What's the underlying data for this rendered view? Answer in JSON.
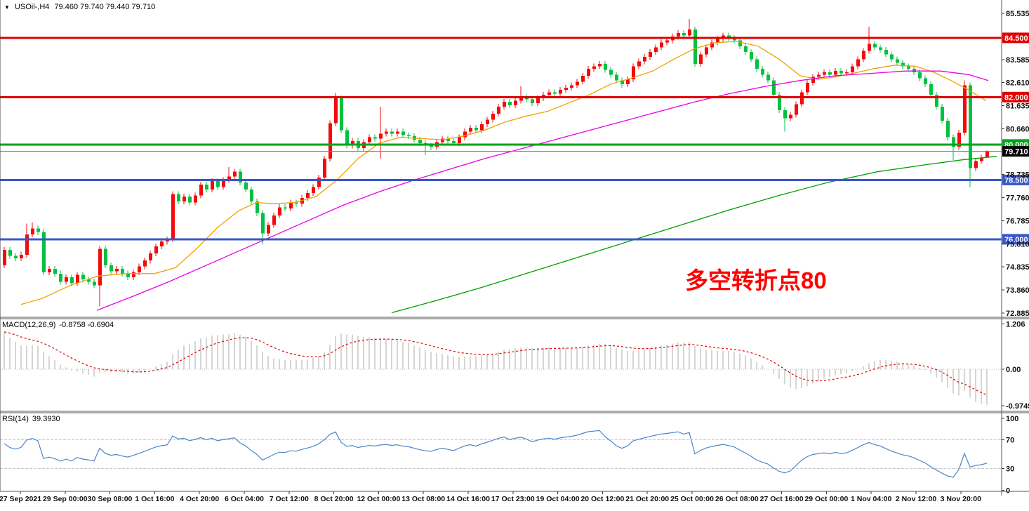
{
  "header": {
    "dropdown_icon": "▼",
    "symbol_text": "USOil-,H4",
    "ohlc_text": "79.460 79.740 79.440 79.710"
  },
  "chart_data": {
    "type": "candlestick",
    "symbol": "USOil-",
    "timeframe": "H4",
    "last_candle": {
      "open": 79.46,
      "high": 79.74,
      "low": 79.44,
      "close": 79.71
    },
    "colors": {
      "up_candle": "#f40a0a",
      "down_candle": "#00c240",
      "resistance_line": "#e00000",
      "pivot_line": "#00a41a",
      "support_line": "#3a57c8",
      "current_price_line": "#7d7d7d",
      "current_price_badge": "#000000",
      "ma_fast": "#f0a000",
      "ma_mid": "#e800e8",
      "ma_slow": "#00a000",
      "macd_histogram": "#ababab",
      "macd_signal": "#e00000",
      "rsi_line": "#4a86c8",
      "annotation": "#ff0000"
    },
    "y_axis": {
      "ticks": [
        {
          "label": "85.535",
          "value": 85.535
        },
        {
          "label": "83.585",
          "value": 83.585
        },
        {
          "label": "82.610",
          "value": 82.61
        },
        {
          "label": "81.635",
          "value": 81.635
        },
        {
          "label": "80.660",
          "value": 80.66
        },
        {
          "label": "78.735",
          "value": 78.735
        },
        {
          "label": "77.760",
          "value": 77.76
        },
        {
          "label": "76.785",
          "value": 76.785
        },
        {
          "label": "75.810",
          "value": 75.81
        },
        {
          "label": "74.835",
          "value": 74.835
        },
        {
          "label": "73.860",
          "value": 73.86
        },
        {
          "label": "72.885",
          "value": 72.885
        }
      ]
    },
    "levels": [
      {
        "label": "84.500",
        "value": 84.5,
        "line_color": "#e00000",
        "badge_color": "#e00000",
        "line_width": 3
      },
      {
        "label": "82.000",
        "value": 82.0,
        "line_color": "#e00000",
        "badge_color": "#e00000",
        "line_width": 3
      },
      {
        "label": "80.000",
        "value": 80.0,
        "line_color": "#00a41a",
        "badge_color": "#00a41a",
        "line_width": 3
      },
      {
        "label": "79.710",
        "value": 79.71,
        "line_color": "#7d7d7d",
        "badge_color": "#000000",
        "line_width": 1
      },
      {
        "label": "78.500",
        "value": 78.5,
        "line_color": "#3a57c8",
        "badge_color": "#3a57c8",
        "line_width": 3
      },
      {
        "label": "76.000",
        "value": 76.0,
        "line_color": "#3a57c8",
        "badge_color": "#3a57c8",
        "line_width": 3
      }
    ],
    "x_axis": {
      "labels": [
        "27 Sep 2021",
        "29 Sep 00:00",
        "30 Sep 08:00",
        "1 Oct 16:00",
        "4 Oct 20:00",
        "6 Oct 04:00",
        "7 Oct 12:00",
        "8 Oct 20:00",
        "12 Oct 00:00",
        "13 Oct 08:00",
        "14 Oct 16:00",
        "17 Oct 23:00",
        "19 Oct 04:00",
        "20 Oct 12:00",
        "21 Oct 20:00",
        "25 Oct 00:00",
        "26 Oct 08:00",
        "27 Oct 16:00",
        "29 Oct 00:00",
        "1 Nov 04:00",
        "2 Nov 12:00",
        "3 Nov 20:00"
      ]
    },
    "candles": {
      "first_open": 74.9,
      "closes": [
        75.55,
        75.3,
        75.2,
        75.35,
        76.2,
        76.45,
        76.3,
        74.6,
        74.75,
        74.55,
        74.2,
        74.4,
        74.15,
        74.5,
        74.3,
        74.2,
        74.05,
        75.6,
        74.9,
        74.65,
        74.75,
        74.55,
        74.4,
        74.6,
        74.85,
        75.1,
        75.4,
        75.7,
        75.9,
        76.0,
        77.9,
        77.6,
        77.8,
        77.55,
        77.85,
        78.3,
        78.1,
        78.45,
        78.2,
        78.5,
        78.65,
        78.85,
        78.4,
        78.1,
        77.6,
        77.1,
        76.25,
        76.6,
        77.0,
        77.35,
        77.3,
        77.55,
        77.5,
        77.75,
        77.95,
        78.2,
        78.6,
        79.4,
        80.9,
        81.95,
        80.6,
        79.95,
        80.15,
        79.85,
        80.1,
        80.3,
        80.25,
        80.45,
        80.55,
        80.45,
        80.55,
        80.4,
        80.35,
        80.2,
        80.05,
        79.95,
        79.9,
        80.1,
        80.25,
        80.15,
        80.05,
        80.3,
        80.55,
        80.7,
        80.6,
        80.85,
        81.05,
        81.3,
        81.6,
        81.8,
        81.65,
        81.85,
        82.0,
        81.9,
        81.75,
        81.95,
        82.1,
        82.2,
        82.15,
        82.3,
        82.4,
        82.5,
        82.65,
        82.9,
        83.2,
        83.3,
        83.4,
        83.15,
        82.95,
        82.7,
        82.55,
        82.75,
        83.3,
        83.5,
        83.7,
        83.9,
        84.1,
        84.3,
        84.4,
        84.55,
        84.7,
        84.6,
        84.85,
        83.4,
        83.8,
        84.1,
        84.3,
        84.45,
        84.6,
        84.5,
        84.4,
        84.15,
        83.9,
        83.6,
        83.2,
        82.95,
        82.7,
        82.1,
        81.45,
        81.1,
        81.25,
        81.7,
        82.2,
        82.6,
        82.85,
        82.95,
        83.05,
        82.95,
        83.1,
        83.0,
        83.05,
        83.3,
        83.6,
        83.95,
        84.25,
        84.1,
        84.0,
        83.8,
        83.6,
        83.45,
        83.3,
        83.2,
        83.05,
        82.8,
        82.55,
        82.1,
        81.6,
        81.0,
        80.3,
        79.9,
        80.5,
        82.5,
        79.0,
        79.3,
        79.45,
        79.71
      ],
      "wick_overrides": {
        "4": {
          "high": 76.66
        },
        "5": {
          "high": 76.72
        },
        "17": {
          "low": 73.16
        },
        "40": {
          "high": 79.05
        },
        "46": {
          "low": 75.78
        },
        "59": {
          "high": 82.17
        },
        "67": {
          "high": 81.6,
          "low": 79.4
        },
        "75": {
          "low": 79.55
        },
        "92": {
          "high": 82.45
        },
        "110": {
          "low": 82.4
        },
        "122": {
          "high": 85.3
        },
        "139": {
          "low": 80.55
        },
        "154": {
          "high": 84.97
        },
        "169": {
          "low": 79.35
        },
        "171": {
          "high": 82.7
        },
        "172": {
          "low": 78.19
        },
        "175": {
          "open": 79.46,
          "high": 79.74,
          "low": 79.44,
          "close": 79.71
        }
      }
    },
    "moving_averages": [
      {
        "name": "ma-fast",
        "color": "#f0a000",
        "width": 1.3,
        "points": [
          [
            30,
            73.25
          ],
          [
            60,
            73.5
          ],
          [
            100,
            74.05
          ],
          [
            140,
            74.45
          ],
          [
            180,
            74.55
          ],
          [
            220,
            74.55
          ],
          [
            250,
            74.8
          ],
          [
            280,
            75.6
          ],
          [
            310,
            76.5
          ],
          [
            340,
            77.2
          ],
          [
            365,
            77.55
          ],
          [
            390,
            77.5
          ],
          [
            420,
            77.55
          ],
          [
            450,
            77.8
          ],
          [
            480,
            78.5
          ],
          [
            510,
            79.4
          ],
          [
            540,
            80.05
          ],
          [
            570,
            80.3
          ],
          [
            600,
            80.25
          ],
          [
            630,
            80.2
          ],
          [
            660,
            80.35
          ],
          [
            690,
            80.6
          ],
          [
            720,
            80.95
          ],
          [
            750,
            81.2
          ],
          [
            780,
            81.4
          ],
          [
            810,
            81.75
          ],
          [
            840,
            82.1
          ],
          [
            870,
            82.55
          ],
          [
            900,
            82.8
          ],
          [
            930,
            83.1
          ],
          [
            960,
            83.6
          ],
          [
            990,
            84.05
          ],
          [
            1020,
            84.3
          ],
          [
            1050,
            84.35
          ],
          [
            1080,
            84.15
          ],
          [
            1110,
            83.6
          ],
          [
            1140,
            82.9
          ],
          [
            1165,
            82.75
          ],
          [
            1190,
            82.85
          ],
          [
            1215,
            83.0
          ],
          [
            1245,
            83.2
          ],
          [
            1275,
            83.35
          ],
          [
            1305,
            83.3
          ],
          [
            1330,
            83.05
          ],
          [
            1355,
            82.7
          ],
          [
            1380,
            82.3
          ],
          [
            1405,
            81.85
          ]
        ]
      },
      {
        "name": "ma-mid",
        "color": "#e800e8",
        "width": 1.3,
        "points": [
          [
            138,
            73.0
          ],
          [
            190,
            73.6
          ],
          [
            240,
            74.2
          ],
          [
            290,
            74.85
          ],
          [
            340,
            75.5
          ],
          [
            390,
            76.15
          ],
          [
            440,
            76.8
          ],
          [
            490,
            77.45
          ],
          [
            540,
            78.0
          ],
          [
            590,
            78.5
          ],
          [
            640,
            78.95
          ],
          [
            690,
            79.4
          ],
          [
            740,
            79.8
          ],
          [
            790,
            80.2
          ],
          [
            840,
            80.6
          ],
          [
            890,
            81.0
          ],
          [
            940,
            81.4
          ],
          [
            990,
            81.8
          ],
          [
            1040,
            82.15
          ],
          [
            1090,
            82.45
          ],
          [
            1140,
            82.7
          ],
          [
            1190,
            82.9
          ],
          [
            1240,
            83.0
          ],
          [
            1290,
            83.1
          ],
          [
            1340,
            83.1
          ],
          [
            1380,
            82.95
          ],
          [
            1408,
            82.7
          ]
        ]
      },
      {
        "name": "ma-slow",
        "color": "#00a000",
        "width": 1.3,
        "points": [
          [
            558,
            72.9
          ],
          [
            620,
            73.4
          ],
          [
            690,
            74.0
          ],
          [
            760,
            74.65
          ],
          [
            830,
            75.3
          ],
          [
            900,
            75.95
          ],
          [
            970,
            76.6
          ],
          [
            1040,
            77.25
          ],
          [
            1110,
            77.85
          ],
          [
            1180,
            78.4
          ],
          [
            1250,
            78.85
          ],
          [
            1320,
            79.15
          ],
          [
            1370,
            79.35
          ],
          [
            1420,
            79.5
          ]
        ]
      }
    ],
    "indicators": {
      "macd": {
        "label": "MACD(12,26,9)",
        "values_text": "-0.8758 -0.6904",
        "main_value": -0.8758,
        "signal_value": -0.6904,
        "scale_ticks": [
          {
            "label": "1.206",
            "value": 1.206
          },
          {
            "label": "0.00",
            "value": 0
          },
          {
            "label": "-0.9749",
            "value": -0.9749
          }
        ],
        "seeds": {
          "ema_fast_offset": 0.55,
          "ema_slow_offset": -0.55,
          "signal_start": 1.0
        }
      },
      "rsi": {
        "label": "RSI(14)",
        "value_text": "39.3930",
        "value": 39.393,
        "scale_ticks": [
          {
            "label": "100",
            "value": 100
          },
          {
            "label": "70",
            "value": 70
          },
          {
            "label": "30",
            "value": 30
          },
          {
            "label": "0",
            "value": 0
          }
        ],
        "level_lines": [
          70,
          30
        ],
        "seeds": {
          "start": 65,
          "avg_gain": 0.13,
          "avg_loss": 0.07
        }
      }
    },
    "annotation": {
      "text": "多空转折点80",
      "color": "#ff0000"
    }
  }
}
